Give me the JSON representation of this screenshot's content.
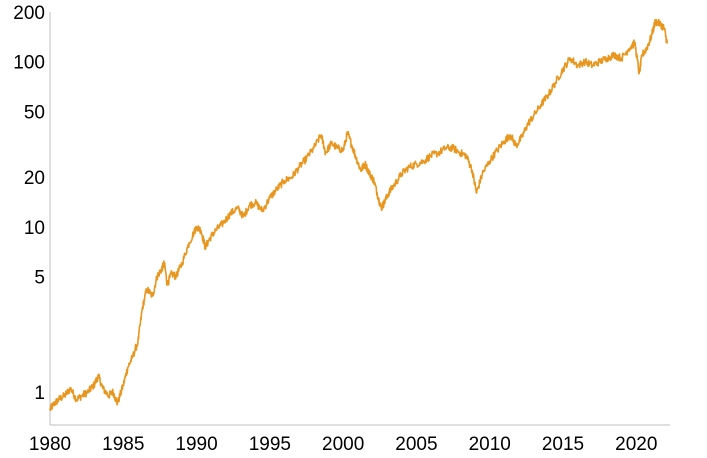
{
  "chart_data": {
    "type": "line",
    "title": "",
    "xlabel": "",
    "ylabel": "",
    "y_scale": "log",
    "grid": false,
    "legend": "none",
    "xlim": [
      1980,
      2022.3
    ],
    "ylim": [
      0.63,
      200
    ],
    "x_ticks": [
      1980,
      1985,
      1990,
      1995,
      2000,
      2005,
      2010,
      2015,
      2020
    ],
    "x_tick_labels": [
      "1980",
      "1985",
      "1990",
      "1995",
      "2000",
      "2005",
      "2010",
      "2015",
      "2020"
    ],
    "y_ticks": [
      1,
      5,
      10,
      20,
      50,
      100,
      200
    ],
    "y_tick_labels": [
      "1",
      "5",
      "10",
      "20",
      "50",
      "100",
      "200"
    ],
    "series_color": "#E8961E",
    "axis_color": "#BFBFBF",
    "series": [
      {
        "x": [
          1980.0,
          1980.3,
          1980.6,
          1981.0,
          1981.4,
          1981.8,
          1982.2,
          1982.6,
          1983.0,
          1983.3,
          1983.6,
          1984.0,
          1984.3,
          1984.6,
          1985.0,
          1985.3,
          1985.6,
          1986.0,
          1986.3,
          1986.6,
          1987.0,
          1987.3,
          1987.6,
          1987.8,
          1988.0,
          1988.3,
          1988.6,
          1989.0,
          1989.5,
          1990.0,
          1990.3,
          1990.6,
          1990.9,
          1991.3,
          1991.8,
          1992.3,
          1992.8,
          1993.2,
          1993.6,
          1994.0,
          1994.5,
          1995.0,
          1995.5,
          1996.0,
          1996.5,
          1997.0,
          1997.5,
          1998.0,
          1998.5,
          1998.8,
          1999.2,
          1999.6,
          2000.0,
          2000.3,
          2000.6,
          2000.9,
          2001.2,
          2001.5,
          2001.8,
          2002.1,
          2002.4,
          2002.6,
          2002.8,
          2003.1,
          2003.5,
          2004.0,
          2004.5,
          2005.0,
          2005.5,
          2006.0,
          2006.5,
          2007.0,
          2007.5,
          2008.0,
          2008.4,
          2008.8,
          2009.1,
          2009.5,
          2010.0,
          2010.5,
          2011.0,
          2011.4,
          2011.8,
          2012.2,
          2012.6,
          2013.0,
          2013.5,
          2014.0,
          2014.5,
          2015.0,
          2015.5,
          2016.0,
          2016.5,
          2017.0,
          2017.5,
          2018.0,
          2018.5,
          2019.0,
          2019.5,
          2019.9,
          2020.2,
          2020.4,
          2020.7,
          2021.0,
          2021.3,
          2021.6,
          2021.9,
          2022.1
        ],
        "y": [
          0.78,
          0.85,
          0.9,
          0.95,
          1.05,
          0.9,
          0.95,
          1.0,
          1.1,
          1.25,
          1.05,
          0.95,
          1.0,
          0.85,
          1.1,
          1.4,
          1.6,
          2.0,
          3.2,
          4.2,
          3.8,
          5.0,
          5.5,
          6.0,
          4.5,
          5.2,
          5.0,
          6.0,
          8.0,
          10.0,
          9.5,
          7.5,
          8.5,
          9.5,
          10.5,
          12.0,
          13.0,
          11.5,
          13.5,
          14.0,
          12.5,
          15.0,
          17.0,
          19.0,
          20.0,
          23.0,
          26.0,
          30.0,
          36.0,
          28.0,
          32.0,
          30.0,
          29.0,
          37.0,
          31.0,
          26.0,
          22.0,
          24.0,
          21.0,
          19.0,
          15.0,
          13.0,
          14.0,
          16.0,
          18.0,
          21.0,
          23.0,
          24.0,
          25.0,
          27.0,
          28.0,
          30.0,
          30.0,
          28.0,
          27.0,
          22.0,
          16.0,
          21.0,
          25.0,
          29.0,
          33.0,
          36.0,
          31.0,
          35.0,
          42.0,
          47.0,
          55.0,
          63.0,
          75.0,
          90.0,
          105.0,
          95.0,
          100.0,
          95.0,
          100.0,
          105.0,
          110.0,
          105.0,
          120.0,
          130.0,
          85.0,
          110.0,
          120.0,
          140.0,
          175.0,
          170.0,
          160.0,
          130.0
        ]
      }
    ]
  }
}
